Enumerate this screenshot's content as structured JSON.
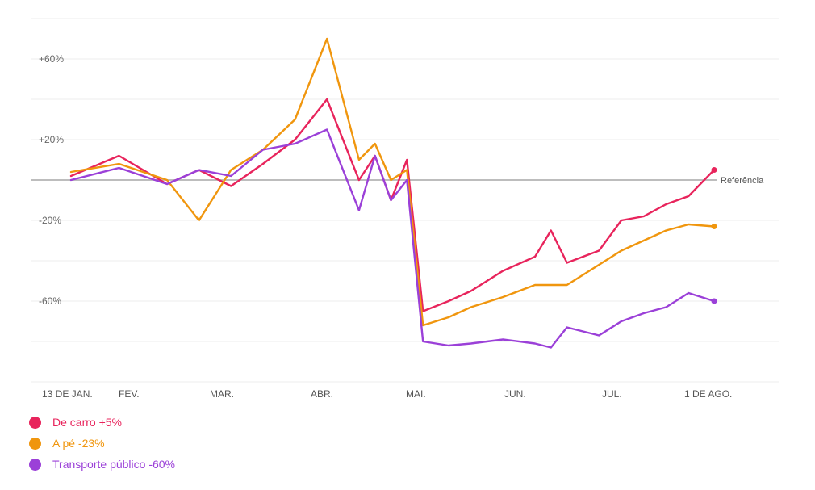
{
  "chart_data": {
    "type": "line",
    "x_labels": [
      "13 DE JAN.",
      "FEV.",
      "MAR.",
      "ABR.",
      "MAI.",
      "JUN.",
      "JUL.",
      "1 DE AGO."
    ],
    "y_ticks": [
      "+60%",
      "+20%",
      "-20%",
      "-60%"
    ],
    "ylim": [
      -100,
      80
    ],
    "reference_label": "Referência",
    "grid": true,
    "legend_position": "bottom-left",
    "series": [
      {
        "name": "De carro",
        "legend": "De carro +5%",
        "color": "#e8245c",
        "x": [
          0,
          15,
          30,
          40,
          50,
          60,
          70,
          80,
          90,
          95,
          100,
          105,
          110,
          118,
          125,
          135,
          145,
          150,
          155,
          165,
          172,
          179,
          186,
          193,
          201
        ],
        "y": [
          2,
          12,
          -2,
          5,
          -3,
          8,
          20,
          40,
          0,
          12,
          -10,
          10,
          -65,
          -60,
          -55,
          -45,
          -38,
          -25,
          -41,
          -35,
          -20,
          -18,
          -12,
          -8,
          5
        ]
      },
      {
        "name": "A pé",
        "legend": "A pé -23%",
        "color": "#f0960e",
        "x": [
          0,
          15,
          30,
          40,
          50,
          60,
          70,
          80,
          90,
          95,
          100,
          105,
          110,
          118,
          125,
          135,
          145,
          150,
          155,
          165,
          172,
          179,
          186,
          193,
          201
        ],
        "y": [
          4,
          8,
          0,
          -20,
          5,
          15,
          30,
          70,
          10,
          18,
          0,
          5,
          -72,
          -68,
          -63,
          -58,
          -52,
          -52,
          -52,
          -42,
          -35,
          -30,
          -25,
          -22,
          -23
        ]
      },
      {
        "name": "Transporte público",
        "legend": "Transporte público -60%",
        "color": "#9b40d8",
        "x": [
          0,
          15,
          30,
          40,
          50,
          60,
          70,
          80,
          90,
          95,
          100,
          105,
          110,
          118,
          125,
          135,
          145,
          150,
          155,
          165,
          172,
          179,
          186,
          193,
          201
        ],
        "y": [
          0,
          6,
          -2,
          5,
          2,
          15,
          18,
          25,
          -15,
          12,
          -10,
          0,
          -80,
          -82,
          -81,
          -79,
          -81,
          -83,
          -73,
          -77,
          -70,
          -66,
          -63,
          -56,
          -60
        ]
      }
    ]
  }
}
